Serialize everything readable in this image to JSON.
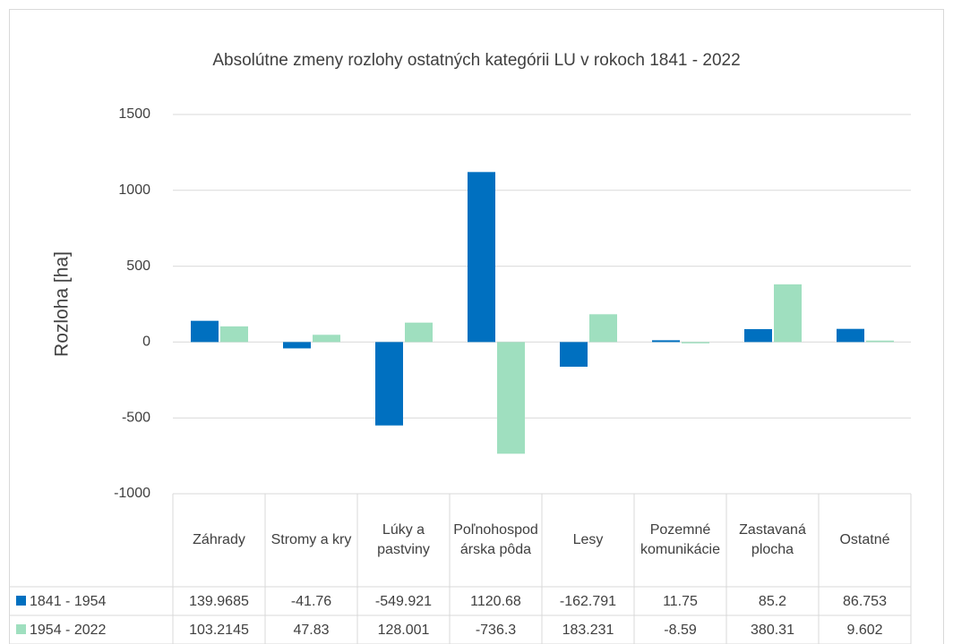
{
  "chart_data": {
    "type": "bar",
    "title": "Absolútne zmeny rozlohy ostatných kategórii LU v rokoch 1841 - 2022",
    "y_label": "Rozloha [ha]",
    "categories": [
      "Záhrady",
      "Stromy a kry",
      "Lúky a pastviny",
      "Poľnohospodárska pôda",
      "Lesy",
      "Pozemné komunikácie",
      "Zastavaná plocha",
      "Ostatné"
    ],
    "series": [
      {
        "name": "1841 - 1954",
        "color": "#0070c0",
        "values": [
          139.9685,
          -41.76,
          -549.921,
          1120.68,
          -162.791,
          11.75,
          85.2,
          86.753
        ]
      },
      {
        "name": "1954 - 2022",
        "color": "#9fdfbf",
        "values": [
          103.2145,
          47.83,
          128.001,
          -736.3,
          183.231,
          -8.59,
          380.31,
          9.602
        ]
      }
    ],
    "ylim": [
      -1000,
      1500
    ],
    "yticks": [
      -1000,
      -500,
      0,
      500,
      1000,
      1500
    ],
    "grid": true,
    "data_table": true
  }
}
